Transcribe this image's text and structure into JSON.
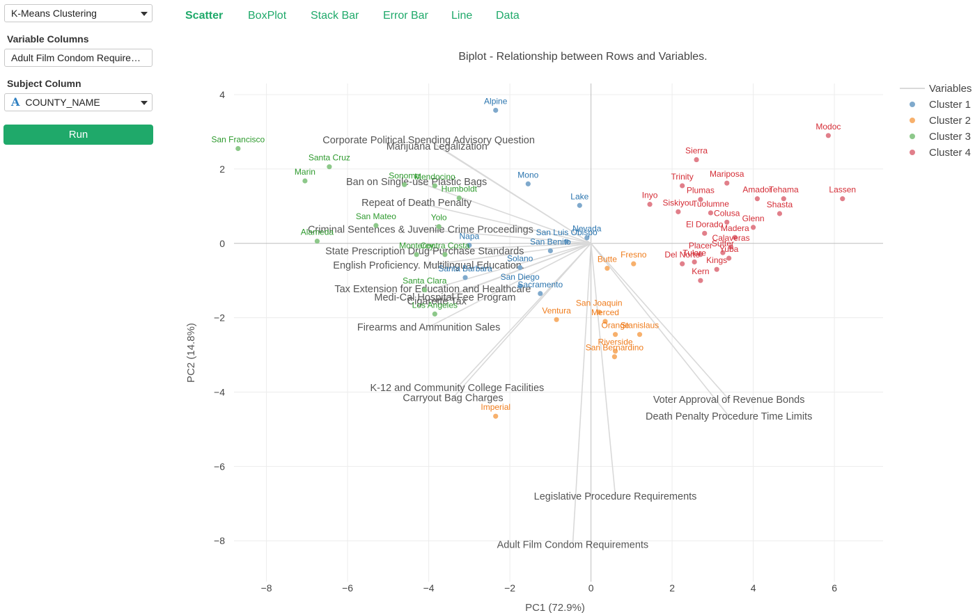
{
  "sidebar": {
    "method_select": "K-Means Clustering",
    "variable_columns_label": "Variable Columns",
    "variable_columns_value": "Adult Film Condom Requirements",
    "subject_column_label": "Subject Column",
    "subject_column_type_icon": "A",
    "subject_column_value": "COUNTY_NAME",
    "run_label": "Run",
    "accent_color": "#1fa96a"
  },
  "tabs": [
    {
      "label": "Scatter",
      "active": true
    },
    {
      "label": "BoxPlot",
      "active": false
    },
    {
      "label": "Stack Bar",
      "active": false
    },
    {
      "label": "Error Bar",
      "active": false
    },
    {
      "label": "Line",
      "active": false
    },
    {
      "label": "Data",
      "active": false
    }
  ],
  "chart_data": {
    "type": "scatter",
    "title": "Biplot - Relationship between Rows and Variables.",
    "xlabel": "PC1 (72.9%)",
    "ylabel": "PC2 (14.8%)",
    "xlim": [
      -8.8,
      7.2
    ],
    "ylim": [
      -9.1,
      4.3
    ],
    "xticks": [
      -8,
      -6,
      -4,
      -2,
      0,
      2,
      4,
      6
    ],
    "yticks": [
      -8,
      -6,
      -4,
      -2,
      0,
      2,
      4
    ],
    "xtick_labels": [
      "−8",
      "−6",
      "−4",
      "−2",
      "0",
      "2",
      "4",
      "6"
    ],
    "ytick_labels": [
      "−8",
      "−6",
      "−4",
      "−2",
      "0",
      "2",
      "4"
    ],
    "grid": true,
    "legend": {
      "position": "top-right",
      "variables_label": "Variables",
      "variables_color": "#d9d9d9",
      "clusters": [
        {
          "name": "Cluster 1",
          "point_color": "#7fa9cc",
          "text_color": "#2a74ae"
        },
        {
          "name": "Cluster 2",
          "point_color": "#f7b06c",
          "text_color": "#ef7c1c"
        },
        {
          "name": "Cluster 3",
          "point_color": "#8dc88a",
          "text_color": "#2e9a2e"
        },
        {
          "name": "Cluster 4",
          "point_color": "#e17f8a",
          "text_color": "#d42c35"
        }
      ]
    },
    "variables": [
      {
        "name": "Corporate Political Spending Advisory Question",
        "x": -4.0,
        "y": 2.78
      },
      {
        "name": "Marijuana Legalization",
        "x": -3.8,
        "y": 2.62
      },
      {
        "name": "Ban on Single-use Plastic Bags",
        "x": -4.3,
        "y": 1.66
      },
      {
        "name": "Repeat of Death Penalty",
        "x": -4.3,
        "y": 1.1
      },
      {
        "name": "Criminal Sentences & Juvenile Crime Proceedings",
        "x": -4.2,
        "y": 0.38
      },
      {
        "name": "State Prescription Drug Purchase Standards",
        "x": -4.1,
        "y": -0.2
      },
      {
        "name": "English Proficiency. Multilingual Education.",
        "x": -4.0,
        "y": -0.58
      },
      {
        "name": "Tax Extension for Education and Healthcare",
        "x": -3.9,
        "y": -1.22
      },
      {
        "name": "Medi-Cal Hospital Fee Program",
        "x": -3.6,
        "y": -1.45
      },
      {
        "name": "Cigarette Tax",
        "x": -3.8,
        "y": -1.55
      },
      {
        "name": "Firearms and Ammunition Sales",
        "x": -4.0,
        "y": -2.25
      },
      {
        "name": "K-12 and Community College Facilities",
        "x": -3.3,
        "y": -3.88
      },
      {
        "name": "Carryout Bag Charges",
        "x": -3.4,
        "y": -4.15
      },
      {
        "name": "Voter Approval of Revenue Bonds",
        "x": 3.4,
        "y": -4.2
      },
      {
        "name": "Death Penalty Procedure Time Limits",
        "x": 3.4,
        "y": -4.65
      },
      {
        "name": "Legislative Procedure Requirements",
        "x": 0.6,
        "y": -6.8
      },
      {
        "name": "Adult Film Condom Requirements",
        "x": -0.45,
        "y": -8.1
      }
    ],
    "points": [
      {
        "label": "Alpine",
        "x": -2.35,
        "y": 3.58,
        "cluster": 1
      },
      {
        "label": "Mono",
        "x": -1.55,
        "y": 1.6,
        "cluster": 1
      },
      {
        "label": "Lake",
        "x": -0.28,
        "y": 1.02,
        "cluster": 1
      },
      {
        "label": "Nevada",
        "x": -0.1,
        "y": 0.15,
        "cluster": 1
      },
      {
        "label": "San Luis Obispo",
        "x": -0.6,
        "y": 0.05,
        "cluster": 1
      },
      {
        "label": "San Benito",
        "x": -1.0,
        "y": -0.2,
        "cluster": 1
      },
      {
        "label": "Napa",
        "x": -3.0,
        "y": -0.05,
        "cluster": 1
      },
      {
        "label": "Solano",
        "x": -1.75,
        "y": -0.65,
        "cluster": 1
      },
      {
        "label": "Santa Barbara",
        "x": -3.1,
        "y": -0.92,
        "cluster": 1
      },
      {
        "label": "San Diego",
        "x": -1.75,
        "y": -1.15,
        "cluster": 1
      },
      {
        "label": "Sacramento",
        "x": -1.25,
        "y": -1.35,
        "cluster": 1
      },
      {
        "label": "Fresno",
        "x": 1.05,
        "y": -0.55,
        "cluster": 2
      },
      {
        "label": "Butte",
        "x": 0.4,
        "y": -0.67,
        "cluster": 2
      },
      {
        "label": "Ventura",
        "x": -0.85,
        "y": -2.05,
        "cluster": 2
      },
      {
        "label": "San Joaquin",
        "x": 0.2,
        "y": -1.85,
        "cluster": 2
      },
      {
        "label": "Merced",
        "x": 0.35,
        "y": -2.1,
        "cluster": 2
      },
      {
        "label": "Orange",
        "x": 0.6,
        "y": -2.45,
        "cluster": 2
      },
      {
        "label": "Stanislaus",
        "x": 1.2,
        "y": -2.45,
        "cluster": 2
      },
      {
        "label": "Riverside",
        "x": 0.6,
        "y": -2.9,
        "cluster": 2
      },
      {
        "label": "San Bernardino",
        "x": 0.58,
        "y": -3.05,
        "cluster": 2
      },
      {
        "label": "Imperial",
        "x": -2.35,
        "y": -4.65,
        "cluster": 2
      },
      {
        "label": "San Francisco",
        "x": -8.7,
        "y": 2.55,
        "cluster": 3
      },
      {
        "label": "Santa Cruz",
        "x": -6.45,
        "y": 2.06,
        "cluster": 3
      },
      {
        "label": "Marin",
        "x": -7.05,
        "y": 1.68,
        "cluster": 3
      },
      {
        "label": "Sonoma",
        "x": -4.6,
        "y": 1.58,
        "cluster": 3
      },
      {
        "label": "Mendocino",
        "x": -3.85,
        "y": 1.55,
        "cluster": 3
      },
      {
        "label": "Humboldt",
        "x": -3.25,
        "y": 1.22,
        "cluster": 3
      },
      {
        "label": "San Mateo",
        "x": -5.3,
        "y": 0.48,
        "cluster": 3
      },
      {
        "label": "Yolo",
        "x": -3.75,
        "y": 0.45,
        "cluster": 3
      },
      {
        "label": "Alameda",
        "x": -6.75,
        "y": 0.06,
        "cluster": 3
      },
      {
        "label": "Monterey",
        "x": -4.3,
        "y": -0.3,
        "cluster": 3
      },
      {
        "label": "Contra Costa",
        "x": -3.6,
        "y": -0.3,
        "cluster": 3
      },
      {
        "label": "Santa Clara",
        "x": -4.1,
        "y": -1.25,
        "cluster": 3
      },
      {
        "label": "Los Angeles",
        "x": -3.85,
        "y": -1.9,
        "cluster": 3
      },
      {
        "label": "Modoc",
        "x": 5.85,
        "y": 2.9,
        "cluster": 4
      },
      {
        "label": "Sierra",
        "x": 2.6,
        "y": 2.25,
        "cluster": 4
      },
      {
        "label": "Trinity",
        "x": 2.25,
        "y": 1.55,
        "cluster": 4
      },
      {
        "label": "Mariposa",
        "x": 3.35,
        "y": 1.62,
        "cluster": 4
      },
      {
        "label": "Plumas",
        "x": 2.7,
        "y": 1.18,
        "cluster": 4
      },
      {
        "label": "Amador",
        "x": 4.1,
        "y": 1.2,
        "cluster": 4
      },
      {
        "label": "Tehama",
        "x": 4.75,
        "y": 1.2,
        "cluster": 4
      },
      {
        "label": "Lassen",
        "x": 6.2,
        "y": 1.2,
        "cluster": 4
      },
      {
        "label": "Inyo",
        "x": 1.45,
        "y": 1.05,
        "cluster": 4
      },
      {
        "label": "Siskiyou",
        "x": 2.15,
        "y": 0.85,
        "cluster": 4
      },
      {
        "label": "Tuolumne",
        "x": 2.95,
        "y": 0.82,
        "cluster": 4
      },
      {
        "label": "Shasta",
        "x": 4.65,
        "y": 0.8,
        "cluster": 4
      },
      {
        "label": "Colusa",
        "x": 3.35,
        "y": 0.57,
        "cluster": 4
      },
      {
        "label": "Glenn",
        "x": 4.0,
        "y": 0.43,
        "cluster": 4
      },
      {
        "label": "El Dorado",
        "x": 2.8,
        "y": 0.27,
        "cluster": 4
      },
      {
        "label": "Madera",
        "x": 3.55,
        "y": 0.16,
        "cluster": 4
      },
      {
        "label": "Calaveras",
        "x": 3.45,
        "y": -0.1,
        "cluster": 4
      },
      {
        "label": "Sutter",
        "x": 3.25,
        "y": -0.25,
        "cluster": 4
      },
      {
        "label": "Placer",
        "x": 2.7,
        "y": -0.3,
        "cluster": 4
      },
      {
        "label": "Del Norte",
        "x": 2.25,
        "y": -0.55,
        "cluster": 4
      },
      {
        "label": "Yuba",
        "x": 3.4,
        "y": -0.4,
        "cluster": 4
      },
      {
        "label": "Tulare",
        "x": 2.55,
        "y": -0.5,
        "cluster": 4
      },
      {
        "label": "Kings",
        "x": 3.1,
        "y": -0.7,
        "cluster": 4
      },
      {
        "label": "Kern",
        "x": 2.7,
        "y": -1.0,
        "cluster": 4
      }
    ]
  }
}
